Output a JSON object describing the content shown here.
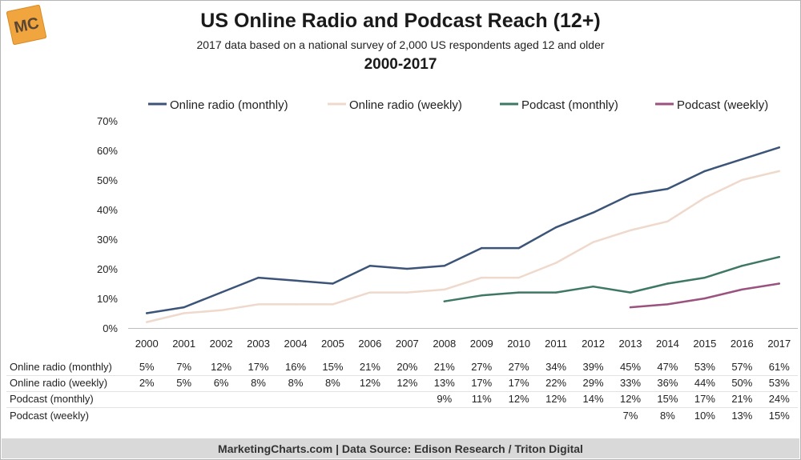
{
  "header": {
    "title": "US Online Radio and Podcast Reach (12+)",
    "subtitle": "2017 data based on a national survey of 2,000 US respondents aged 12 and older",
    "period": "2000-2017",
    "logo_text": "MC"
  },
  "footer": {
    "text": "MarketingCharts.com | Data Source: Edison Research / Triton Digital"
  },
  "colors": {
    "online_radio_monthly": "#3c5478",
    "online_radio_weekly": "#efd9cc",
    "podcast_monthly": "#3e7864",
    "podcast_weekly": "#9a527e",
    "logo_bg": "#f0a53f",
    "footer_bg": "#d9d9d9"
  },
  "chart_data": {
    "type": "line",
    "title": "US Online Radio and Podcast Reach (12+)",
    "xlabel": "",
    "ylabel": "",
    "ylim": [
      0,
      70
    ],
    "yticks": [
      "0%",
      "10%",
      "20%",
      "30%",
      "40%",
      "50%",
      "60%",
      "70%"
    ],
    "grid": false,
    "legend": "top",
    "categories": [
      "2000",
      "2001",
      "2002",
      "2003",
      "2004",
      "2005",
      "2006",
      "2007",
      "2008",
      "2009",
      "2010",
      "2011",
      "2012",
      "2013",
      "2014",
      "2015",
      "2016",
      "2017"
    ],
    "series": [
      {
        "name": "Online radio (monthly)",
        "color": "#3c5478",
        "values": [
          5,
          7,
          12,
          17,
          16,
          15,
          21,
          20,
          21,
          27,
          27,
          34,
          39,
          45,
          47,
          53,
          57,
          61
        ],
        "labels": [
          "5%",
          "7%",
          "12%",
          "17%",
          "16%",
          "15%",
          "21%",
          "20%",
          "21%",
          "27%",
          "27%",
          "34%",
          "39%",
          "45%",
          "47%",
          "53%",
          "57%",
          "61%"
        ]
      },
      {
        "name": "Online radio (weekly)",
        "color": "#efd9cc",
        "values": [
          2,
          5,
          6,
          8,
          8,
          8,
          12,
          12,
          13,
          17,
          17,
          22,
          29,
          33,
          36,
          44,
          50,
          53
        ],
        "labels": [
          "2%",
          "5%",
          "6%",
          "8%",
          "8%",
          "8%",
          "12%",
          "12%",
          "13%",
          "17%",
          "17%",
          "22%",
          "29%",
          "33%",
          "36%",
          "44%",
          "50%",
          "53%"
        ]
      },
      {
        "name": "Podcast (monthly)",
        "color": "#3e7864",
        "values": [
          null,
          null,
          null,
          null,
          null,
          null,
          null,
          null,
          9,
          11,
          12,
          12,
          14,
          12,
          15,
          17,
          21,
          24
        ],
        "labels": [
          "",
          "",
          "",
          "",
          "",
          "",
          "",
          "",
          "9%",
          "11%",
          "12%",
          "12%",
          "14%",
          "12%",
          "15%",
          "17%",
          "21%",
          "24%"
        ]
      },
      {
        "name": "Podcast (weekly)",
        "color": "#9a527e",
        "values": [
          null,
          null,
          null,
          null,
          null,
          null,
          null,
          null,
          null,
          null,
          null,
          null,
          null,
          7,
          8,
          10,
          13,
          15
        ],
        "labels": [
          "",
          "",
          "",
          "",
          "",
          "",
          "",
          "",
          "",
          "",
          "",
          "",
          "",
          "7%",
          "8%",
          "10%",
          "13%",
          "15%"
        ]
      }
    ]
  }
}
